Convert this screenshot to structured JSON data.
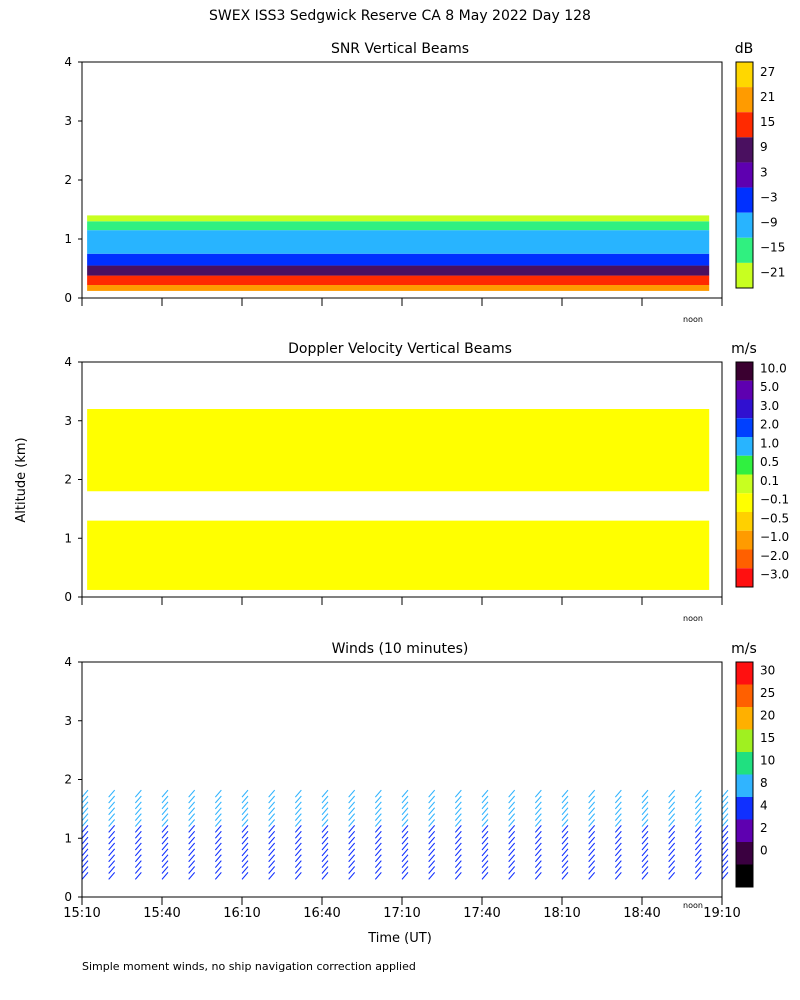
{
  "figure": {
    "title": "SWEX ISS3 Sedgwick Reserve CA   8 May 2022 Day 128",
    "ylabel": "Altitude (km)",
    "xlabel": "Time (UT)",
    "footnote": "Simple moment winds, no ship navigation correction applied",
    "noon_label": "noon"
  },
  "chart_data": [
    {
      "type": "heatmap",
      "title": "SNR Vertical Beams",
      "colorbar_unit": "dB",
      "x_range": [
        "15:10",
        "19:10"
      ],
      "ylim": [
        0,
        4
      ],
      "y_ticks": [
        "0",
        "1",
        "2",
        "3",
        "4"
      ],
      "colorbar_levels": [
        "27",
        "21",
        "15",
        "9",
        "3",
        "−3",
        "−9",
        "−15",
        "−21"
      ],
      "colorbar_colors": [
        "#ffd700",
        "#ff9b00",
        "#ff2a00",
        "#4a1060",
        "#5e00b0",
        "#0030ff",
        "#28b4ff",
        "#30f080",
        "#c8ff20"
      ],
      "layers": [
        {
          "ymin": 0.12,
          "ymax": 0.22,
          "level": "21"
        },
        {
          "ymin": 0.22,
          "ymax": 0.38,
          "level": "15"
        },
        {
          "ymin": 0.38,
          "ymax": 0.55,
          "level": "9"
        },
        {
          "ymin": 0.55,
          "ymax": 0.75,
          "level": "−3"
        },
        {
          "ymin": 0.75,
          "ymax": 1.15,
          "level": "−9"
        },
        {
          "ymin": 1.15,
          "ymax": 1.3,
          "level": "−15"
        },
        {
          "ymin": 1.3,
          "ymax": 1.4,
          "level": "−21"
        }
      ]
    },
    {
      "type": "heatmap",
      "title": "Doppler Velocity Vertical Beams",
      "colorbar_unit": "m/s",
      "x_range": [
        "15:10",
        "19:10"
      ],
      "ylim": [
        0,
        4
      ],
      "y_ticks": [
        "0",
        "1",
        "2",
        "3",
        "4"
      ],
      "colorbar_levels": [
        "10.0",
        "5.0",
        "3.0",
        "2.0",
        "1.0",
        "0.5",
        "0.1",
        "−0.1",
        "−0.5",
        "−1.0",
        "−2.0",
        "−3.0"
      ],
      "colorbar_colors": [
        "#3a0030",
        "#5e00b0",
        "#3010d0",
        "#0040ff",
        "#28b4ff",
        "#30f040",
        "#c8ff20",
        "#ffff00",
        "#ffd000",
        "#ff9b00",
        "#ff6000",
        "#ff1010"
      ],
      "layers": [
        {
          "ymin": 0.12,
          "ymax": 1.3,
          "level": "−0.1"
        },
        {
          "ymin": 1.8,
          "ymax": 3.2,
          "level": "−0.1"
        }
      ]
    },
    {
      "type": "scatter",
      "title": "Winds (10 minutes)",
      "colorbar_unit": "m/s",
      "x_range": [
        "15:10",
        "19:10"
      ],
      "ylim": [
        0,
        4
      ],
      "y_ticks": [
        "0",
        "1",
        "2",
        "3",
        "4"
      ],
      "x_ticks": [
        "15:10",
        "15:40",
        "16:10",
        "16:40",
        "17:10",
        "17:40",
        "18:10",
        "18:40",
        "19:10"
      ],
      "colorbar_levels": [
        "30",
        "25",
        "20",
        "15",
        "10",
        "8",
        "4",
        "2",
        "0"
      ],
      "colorbar_colors": [
        "#ff1010",
        "#ff6000",
        "#ffb000",
        "#a0f020",
        "#20e080",
        "#30b4ff",
        "#1030ff",
        "#5e00b0",
        "#3a0040",
        "#000000"
      ],
      "barb_times_min": [
        0,
        10,
        20,
        30,
        40,
        50,
        60,
        70,
        80,
        90,
        100,
        110,
        120,
        130,
        140,
        150,
        160,
        170,
        180,
        190,
        200,
        210,
        220,
        230,
        240
      ]
    }
  ]
}
